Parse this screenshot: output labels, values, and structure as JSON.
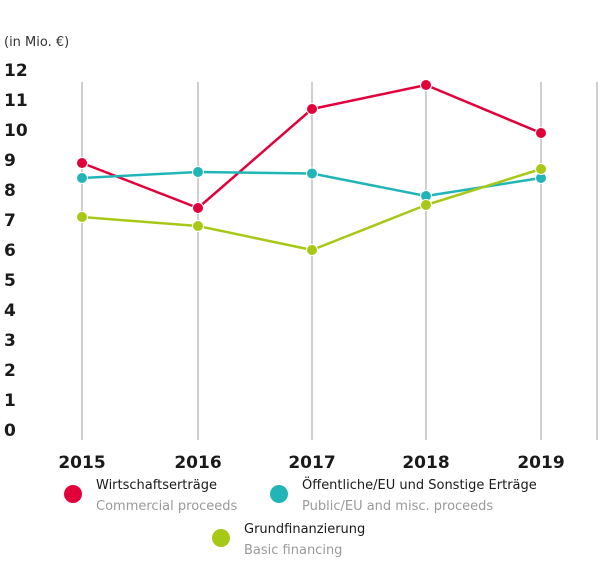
{
  "chart_data": {
    "type": "line",
    "unit_label": "(in Mio. €)",
    "categories": [
      "2015",
      "2016",
      "2017",
      "2018",
      "2019"
    ],
    "y_ticks": [
      "0",
      "1",
      "2",
      "3",
      "4",
      "5",
      "6",
      "7",
      "8",
      "9",
      "10",
      "11",
      "12"
    ],
    "ylim": [
      0,
      12
    ],
    "grid": "vertical",
    "series": [
      {
        "name": "Wirtschaftserträge",
        "name_en": "Commercial proceeds",
        "color": "#e2003a",
        "values": [
          8.9,
          7.4,
          10.7,
          11.5,
          9.9
        ]
      },
      {
        "name": "Öffentliche/EU und Sonstige Erträge",
        "name_en": "Public/EU and misc. proceeds",
        "color": "#22b5b8",
        "values": [
          8.4,
          8.6,
          8.55,
          7.8,
          8.4
        ]
      },
      {
        "name": "Grundfinanzierung",
        "name_en": "Basic financing",
        "color": "#a8c817",
        "values": [
          7.1,
          6.8,
          6.0,
          7.5,
          8.7
        ]
      }
    ],
    "legend_placement": "bottom"
  }
}
